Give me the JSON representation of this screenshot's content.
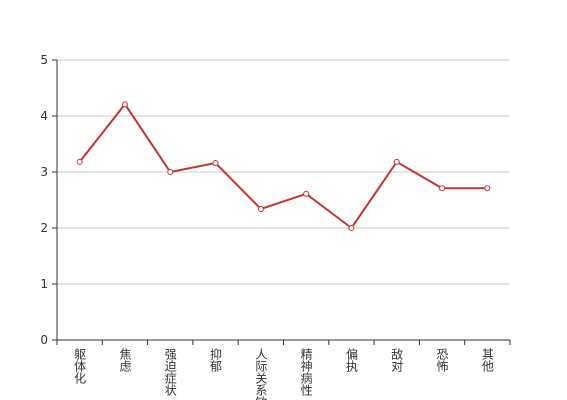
{
  "chart_data": {
    "type": "line",
    "categories": [
      "躯体化",
      "焦虑",
      "强迫症状",
      "抑郁",
      "人际关系敏感",
      "精神病性",
      "偏执",
      "敌对",
      "恐怖",
      "其他"
    ],
    "series": [
      {
        "color": "#c23531",
        "values": [
          3.18,
          4.21,
          3.0,
          3.16,
          2.34,
          2.61,
          2.0,
          3.18,
          2.71,
          2.71
        ]
      }
    ],
    "ylim": [
      0,
      5
    ],
    "yticks": [
      0,
      1,
      2,
      3,
      4,
      5
    ],
    "grid": true
  }
}
